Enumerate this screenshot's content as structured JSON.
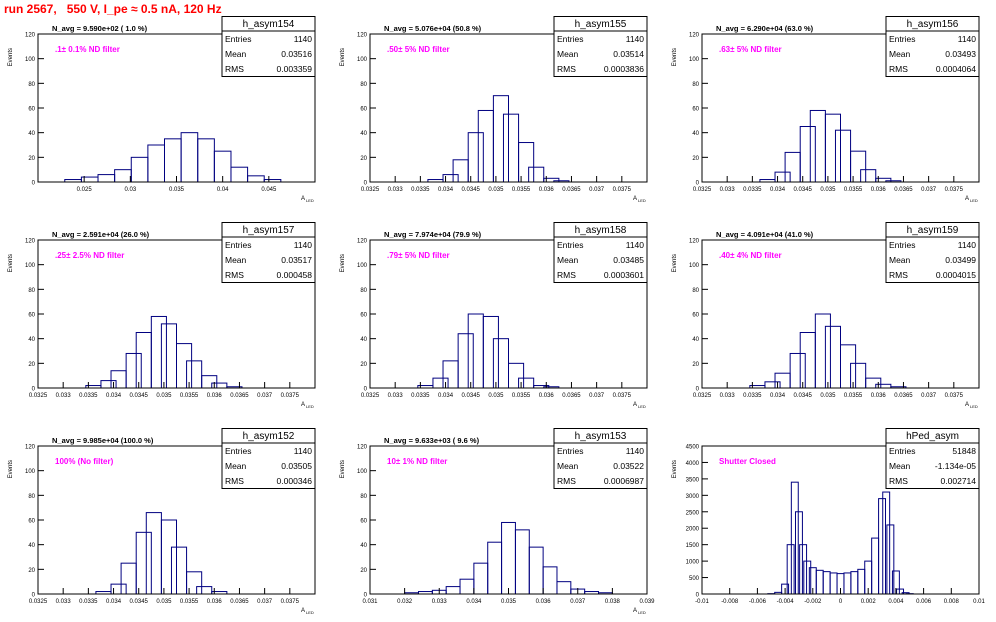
{
  "page_title": "run 2567,   550 V, I_pe ≈ 0.5 nA, 120 Hz",
  "colors": {
    "title": "#ff0000",
    "histogram_line": "#000080",
    "annotation": "#ff00ff",
    "frame": "#000000"
  },
  "chart_data": [
    {
      "type": "bar",
      "name": "h_asym154",
      "stats": {
        "Entries": "1140",
        "Mean": "0.03516",
        "RMS": "0.003359"
      },
      "title_text": "N_avg = 9.590e+02 ( 1.0 %)",
      "annotation": ".1± 0.1% ND filter",
      "ylabel": "Events",
      "xlabel": "A",
      "xlabel_sub": "LED",
      "xlim": [
        0.02,
        0.05
      ],
      "ylim": [
        0,
        120
      ],
      "xticks": [
        "0.025",
        "0.03",
        "0.035",
        "0.04",
        "0.045"
      ],
      "xtick_values": [
        0.025,
        0.03,
        0.035,
        0.04,
        0.045
      ],
      "yticks": [
        "0",
        "20",
        "40",
        "60",
        "80",
        "100",
        "120"
      ],
      "x": [
        0.0238,
        0.0256,
        0.0274,
        0.0292,
        0.031,
        0.0328,
        0.0346,
        0.0364,
        0.0382,
        0.04,
        0.0418,
        0.0436,
        0.0454
      ],
      "values": [
        2,
        4,
        6,
        10,
        20,
        30,
        35,
        40,
        35,
        25,
        12,
        5,
        2
      ],
      "grid": false
    },
    {
      "type": "bar",
      "name": "h_asym155",
      "stats": {
        "Entries": "1140",
        "Mean": "0.03514",
        "RMS": "0.0003836"
      },
      "title_text": "N_avg = 5.076e+04 (50.8 %)",
      "annotation": ".50± 5% ND filter",
      "ylabel": "Events",
      "xlabel": "A",
      "xlabel_sub": "LED",
      "xlim": [
        0.0325,
        0.038
      ],
      "ylim": [
        0,
        120
      ],
      "xticks": [
        "0.0325",
        "0.033",
        "0.0335",
        "0.034",
        "0.0345",
        "0.035",
        "0.0355",
        "0.036",
        "0.0365",
        "0.037",
        "0.0375"
      ],
      "xtick_values": [
        0.0325,
        0.033,
        0.0335,
        0.034,
        0.0345,
        0.035,
        0.0355,
        0.036,
        0.0365,
        0.037,
        0.0375
      ],
      "yticks": [
        "0",
        "20",
        "40",
        "60",
        "80",
        "100",
        "120"
      ],
      "x": [
        0.0338,
        0.0341,
        0.0343,
        0.0346,
        0.0348,
        0.0351,
        0.0353,
        0.0356,
        0.0358,
        0.0361,
        0.0363
      ],
      "values": [
        2,
        6,
        18,
        40,
        58,
        70,
        55,
        32,
        12,
        3,
        1
      ],
      "grid": false
    },
    {
      "type": "bar",
      "name": "h_asym156",
      "stats": {
        "Entries": "1140",
        "Mean": "0.03493",
        "RMS": "0.0004064"
      },
      "title_text": "N_avg = 6.290e+04 (63.0 %)",
      "annotation": ".63± 5% ND filter",
      "ylabel": "Events",
      "xlabel": "A",
      "xlabel_sub": "LED",
      "xlim": [
        0.0325,
        0.038
      ],
      "ylim": [
        0,
        120
      ],
      "xticks": [
        "0.0325",
        "0.033",
        "0.0335",
        "0.034",
        "0.0345",
        "0.035",
        "0.0355",
        "0.036",
        "0.0365",
        "0.037",
        "0.0375"
      ],
      "xtick_values": [
        0.0325,
        0.033,
        0.0335,
        0.034,
        0.0345,
        0.035,
        0.0355,
        0.036,
        0.0365,
        0.037,
        0.0375
      ],
      "yticks": [
        "0",
        "20",
        "40",
        "60",
        "80",
        "100",
        "120"
      ],
      "x": [
        0.0338,
        0.0341,
        0.0343,
        0.0346,
        0.0348,
        0.0351,
        0.0353,
        0.0356,
        0.0358,
        0.0361,
        0.0363
      ],
      "values": [
        2,
        8,
        24,
        45,
        58,
        55,
        42,
        25,
        10,
        3,
        1
      ],
      "grid": false
    },
    {
      "type": "bar",
      "name": "h_asym157",
      "stats": {
        "Entries": "1140",
        "Mean": "0.03517",
        "RMS": "0.000458"
      },
      "title_text": "N_avg = 2.591e+04 (26.0 %)",
      "annotation": ".25± 2.5% ND filter",
      "ylabel": "Events",
      "xlabel": "A",
      "xlabel_sub": "LED",
      "xlim": [
        0.0325,
        0.038
      ],
      "ylim": [
        0,
        120
      ],
      "xticks": [
        "0.0325",
        "0.033",
        "0.0335",
        "0.034",
        "0.0345",
        "0.035",
        "0.0355",
        "0.036",
        "0.0365",
        "0.037",
        "0.0375"
      ],
      "xtick_values": [
        0.0325,
        0.033,
        0.0335,
        0.034,
        0.0345,
        0.035,
        0.0355,
        0.036,
        0.0365,
        0.037,
        0.0375
      ],
      "yticks": [
        "0",
        "20",
        "40",
        "60",
        "80",
        "100",
        "120"
      ],
      "x": [
        0.0336,
        0.0339,
        0.0341,
        0.0344,
        0.0346,
        0.0349,
        0.0351,
        0.0354,
        0.0356,
        0.0359,
        0.0361,
        0.0364
      ],
      "values": [
        2,
        6,
        14,
        28,
        45,
        58,
        52,
        36,
        22,
        10,
        4,
        1
      ],
      "grid": false
    },
    {
      "type": "bar",
      "name": "h_asym158",
      "stats": {
        "Entries": "1140",
        "Mean": "0.03485",
        "RMS": "0.0003601"
      },
      "title_text": "N_avg = 7.974e+04 (79.9 %)",
      "annotation": ".79± 5% ND filter",
      "ylabel": "Events",
      "xlabel": "A",
      "xlabel_sub": "LED",
      "xlim": [
        0.0325,
        0.038
      ],
      "ylim": [
        0,
        120
      ],
      "xticks": [
        "0.0325",
        "0.033",
        "0.0335",
        "0.034",
        "0.0345",
        "0.035",
        "0.0355",
        "0.036",
        "0.0365",
        "0.037",
        "0.0375"
      ],
      "xtick_values": [
        0.0325,
        0.033,
        0.0335,
        0.034,
        0.0345,
        0.035,
        0.0355,
        0.036,
        0.0365,
        0.037,
        0.0375
      ],
      "yticks": [
        "0",
        "20",
        "40",
        "60",
        "80",
        "100",
        "120"
      ],
      "x": [
        0.0336,
        0.0339,
        0.0341,
        0.0344,
        0.0346,
        0.0349,
        0.0351,
        0.0354,
        0.0356,
        0.0359,
        0.0361
      ],
      "values": [
        2,
        8,
        22,
        44,
        60,
        58,
        40,
        20,
        8,
        2,
        1
      ],
      "grid": false
    },
    {
      "type": "bar",
      "name": "h_asym159",
      "stats": {
        "Entries": "1140",
        "Mean": "0.03499",
        "RMS": "0.0004015"
      },
      "title_text": "N_avg = 4.091e+04 (41.0 %)",
      "annotation": ".40± 4% ND filter",
      "ylabel": "Events",
      "xlabel": "A",
      "xlabel_sub": "LED",
      "xlim": [
        0.0325,
        0.038
      ],
      "ylim": [
        0,
        120
      ],
      "xticks": [
        "0.0325",
        "0.033",
        "0.0335",
        "0.034",
        "0.0345",
        "0.035",
        "0.0355",
        "0.036",
        "0.0365",
        "0.037",
        "0.0375"
      ],
      "xtick_values": [
        0.0325,
        0.033,
        0.0335,
        0.034,
        0.0345,
        0.035,
        0.0355,
        0.036,
        0.0365,
        0.037,
        0.0375
      ],
      "yticks": [
        "0",
        "20",
        "40",
        "60",
        "80",
        "100",
        "120"
      ],
      "x": [
        0.0336,
        0.0339,
        0.0341,
        0.0344,
        0.0346,
        0.0349,
        0.0351,
        0.0354,
        0.0356,
        0.0359,
        0.0361,
        0.0364
      ],
      "values": [
        2,
        5,
        12,
        28,
        45,
        60,
        50,
        35,
        20,
        8,
        3,
        1
      ],
      "grid": false
    },
    {
      "type": "bar",
      "name": "h_asym152",
      "stats": {
        "Entries": "1140",
        "Mean": "0.03505",
        "RMS": "0.000346"
      },
      "title_text": "N_avg = 9.985e+04 (100.0 %)",
      "annotation": "100% (No filter)",
      "ylabel": "Events",
      "xlabel": "A",
      "xlabel_sub": "LED",
      "xlim": [
        0.0325,
        0.038
      ],
      "ylim": [
        0,
        120
      ],
      "xticks": [
        "0.0325",
        "0.033",
        "0.0335",
        "0.034",
        "0.0345",
        "0.035",
        "0.0355",
        "0.036",
        "0.0365",
        "0.037",
        "0.0375"
      ],
      "xtick_values": [
        0.0325,
        0.033,
        0.0335,
        0.034,
        0.0345,
        0.035,
        0.0355,
        0.036,
        0.0365,
        0.037,
        0.0375
      ],
      "yticks": [
        "0",
        "20",
        "40",
        "60",
        "80",
        "100",
        "120"
      ],
      "x": [
        0.0338,
        0.0341,
        0.0343,
        0.0346,
        0.0348,
        0.0351,
        0.0353,
        0.0356,
        0.0358,
        0.0361
      ],
      "values": [
        2,
        8,
        25,
        50,
        66,
        60,
        38,
        18,
        6,
        2
      ],
      "grid": false
    },
    {
      "type": "bar",
      "name": "h_asym153",
      "stats": {
        "Entries": "1140",
        "Mean": "0.03522",
        "RMS": "0.0006987"
      },
      "title_text": "N_avg = 9.633e+03 ( 9.6 %)",
      "annotation": "10± 1% ND filter",
      "ylabel": "Events",
      "xlabel": "A",
      "xlabel_sub": "LED",
      "xlim": [
        0.031,
        0.039
      ],
      "ylim": [
        0,
        120
      ],
      "xticks": [
        "0.031",
        "0.032",
        "0.033",
        "0.034",
        "0.035",
        "0.036",
        "0.037",
        "0.038",
        "0.039"
      ],
      "xtick_values": [
        0.031,
        0.032,
        0.033,
        0.034,
        0.035,
        0.036,
        0.037,
        0.038,
        0.039
      ],
      "yticks": [
        "0",
        "20",
        "40",
        "60",
        "80",
        "100",
        "120"
      ],
      "x": [
        0.0322,
        0.0326,
        0.033,
        0.0334,
        0.0338,
        0.0342,
        0.0346,
        0.035,
        0.0354,
        0.0358,
        0.0362,
        0.0366,
        0.037,
        0.0374,
        0.0378
      ],
      "values": [
        1,
        2,
        3,
        6,
        12,
        25,
        42,
        58,
        52,
        38,
        22,
        10,
        4,
        2,
        1
      ],
      "grid": false
    },
    {
      "type": "bar",
      "name": "hPed_asym",
      "stats": {
        "Entries": "51848",
        "Mean": "-1.134e-05",
        "RMS": "0.002714"
      },
      "title_text": "",
      "annotation": "Shutter Closed",
      "ylabel": "Events",
      "xlabel": "",
      "xlabel_sub": "",
      "xlim": [
        -0.01,
        0.01
      ],
      "ylim": [
        0,
        4500
      ],
      "xticks": [
        "-0.01",
        "-0.008",
        "-0.006",
        "-0.004",
        "-0.002",
        "0",
        "0.002",
        "0.004",
        "0.006",
        "0.008",
        "0.01"
      ],
      "xtick_values": [
        -0.01,
        -0.008,
        -0.006,
        -0.004,
        -0.002,
        0,
        0.002,
        0.004,
        0.006,
        0.008,
        0.01
      ],
      "yticks": [
        "0",
        "500",
        "1000",
        "1500",
        "2000",
        "2500",
        "3000",
        "3500",
        "4000",
        "4500"
      ],
      "x": [
        -0.005,
        -0.0045,
        -0.004,
        -0.0036,
        -0.0033,
        -0.003,
        -0.0027,
        -0.0024,
        -0.002,
        -0.0015,
        -0.001,
        -0.0005,
        0,
        0.0005,
        0.001,
        0.0015,
        0.002,
        0.0025,
        0.003,
        0.0033,
        0.0036,
        0.004,
        0.0043,
        0.0047,
        0.005
      ],
      "values": [
        10,
        50,
        300,
        1500,
        3400,
        2500,
        1500,
        1000,
        800,
        720,
        680,
        640,
        620,
        640,
        680,
        750,
        1000,
        1700,
        2900,
        3100,
        2100,
        700,
        150,
        40,
        10
      ],
      "grid": false
    }
  ]
}
